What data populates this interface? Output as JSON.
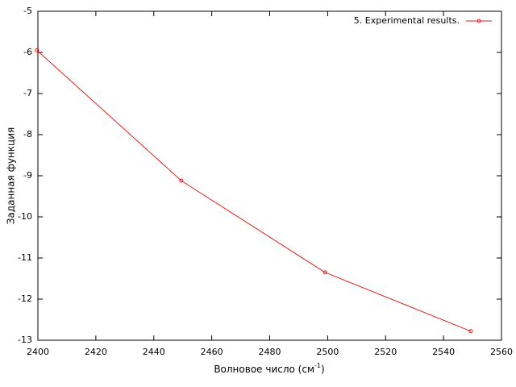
{
  "chart_data": {
    "type": "line",
    "xlabel": {
      "text": "Волновое число (см",
      "superscript": "-1",
      "suffix": ")"
    },
    "ylabel": "Заданная функция",
    "x": [
      2399.7,
      2449.5,
      2499.1,
      2549.4
    ],
    "series": [
      {
        "name": "5. Experimental results.",
        "color": "#e0201c",
        "values": [
          -5.95,
          -9.12,
          -11.35,
          -12.78
        ]
      }
    ],
    "xlim": [
      2400,
      2560
    ],
    "xticks": [
      2400,
      2420,
      2440,
      2460,
      2480,
      2500,
      2520,
      2540,
      2560
    ],
    "ylim": [
      -13,
      -5
    ],
    "yticks": [
      -13,
      -12,
      -11,
      -10,
      -9,
      -8,
      -7,
      -6,
      -5
    ],
    "grid": false,
    "legend": "top-right"
  }
}
